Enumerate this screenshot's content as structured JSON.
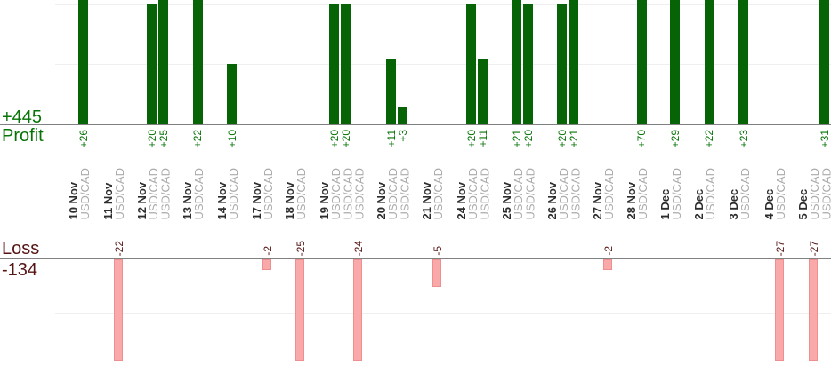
{
  "summary": {
    "profit_total": "+445",
    "profit_label": "Profit",
    "loss_label": "Loss",
    "loss_total": "-134"
  },
  "chart_data": {
    "type": "bar",
    "orientation": "vertical",
    "instrument": "USD/CAD",
    "grid": true,
    "profit_axis": {
      "gridline_values": [
        10,
        20
      ],
      "axis_value": 0
    },
    "loss_axis": {
      "gridline_values": [
        -10
      ],
      "axis_value": 0
    },
    "profit_total": 445,
    "loss_total": -134,
    "value_label_format": "signed",
    "groups": [
      {
        "date": "10 Nov",
        "trades": [
          26
        ]
      },
      {
        "date": "11 Nov",
        "trades": [
          -22
        ]
      },
      {
        "date": "12 Nov",
        "trades": [
          20,
          25
        ]
      },
      {
        "date": "13 Nov",
        "trades": [
          22
        ]
      },
      {
        "date": "14 Nov",
        "trades": [
          10
        ]
      },
      {
        "date": "17 Nov",
        "trades": [
          -2
        ]
      },
      {
        "date": "18 Nov",
        "trades": [
          -25
        ]
      },
      {
        "date": "19 Nov",
        "trades": [
          20,
          20,
          -24
        ]
      },
      {
        "date": "20 Nov",
        "trades": [
          11,
          3
        ]
      },
      {
        "date": "21 Nov",
        "trades": [
          -5
        ]
      },
      {
        "date": "24 Nov",
        "trades": [
          20,
          11
        ]
      },
      {
        "date": "25 Nov",
        "trades": [
          21,
          20
        ]
      },
      {
        "date": "26 Nov",
        "trades": [
          20,
          21
        ]
      },
      {
        "date": "27 Nov",
        "trades": [
          -2
        ]
      },
      {
        "date": "28 Nov",
        "trades": [
          70
        ]
      },
      {
        "date": "1 Dec",
        "trades": [
          29
        ]
      },
      {
        "date": "2 Dec",
        "trades": [
          22
        ]
      },
      {
        "date": "3 Dec",
        "trades": [
          23
        ]
      },
      {
        "date": "4 Dec",
        "trades": [
          -27
        ]
      },
      {
        "date": "5 Dec",
        "trades": [
          -27,
          31
        ]
      }
    ],
    "colors": {
      "profit_bar": "#066306",
      "profit_text": "#077407",
      "loss_bar_fill": "#f9a9a9",
      "loss_bar_border": "#ef8e8e",
      "loss_text": "#571414",
      "date_text": "#2d2d2d",
      "instrument_text": "#ababab",
      "axis_line": "#818181",
      "gridline": "#efefef"
    }
  }
}
